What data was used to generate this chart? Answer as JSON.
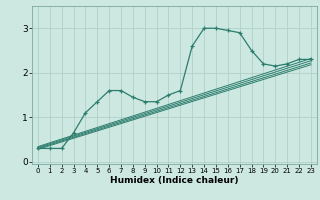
{
  "xlabel": "Humidex (Indice chaleur)",
  "ylabel": "",
  "bg_color": "#cce8e0",
  "line_color": "#2d7d6e",
  "grid_color": "#b0cfc8",
  "xlim": [
    -0.5,
    23.5
  ],
  "ylim": [
    -0.05,
    3.5
  ],
  "yticks": [
    0,
    1,
    2,
    3
  ],
  "xticks": [
    0,
    1,
    2,
    3,
    4,
    5,
    6,
    7,
    8,
    9,
    10,
    11,
    12,
    13,
    14,
    15,
    16,
    17,
    18,
    19,
    20,
    21,
    22,
    23
  ],
  "series": [
    [
      0,
      0.3
    ],
    [
      1,
      0.3
    ],
    [
      2,
      0.3
    ],
    [
      3,
      0.65
    ],
    [
      4,
      1.1
    ],
    [
      5,
      1.35
    ],
    [
      6,
      1.6
    ],
    [
      7,
      1.6
    ],
    [
      8,
      1.45
    ],
    [
      9,
      1.35
    ],
    [
      10,
      1.35
    ],
    [
      11,
      1.5
    ],
    [
      12,
      1.6
    ],
    [
      13,
      2.6
    ],
    [
      14,
      3.0
    ],
    [
      15,
      3.0
    ],
    [
      16,
      2.95
    ],
    [
      17,
      2.9
    ],
    [
      18,
      2.5
    ],
    [
      19,
      2.2
    ],
    [
      20,
      2.15
    ],
    [
      21,
      2.2
    ],
    [
      22,
      2.3
    ],
    [
      23,
      2.3
    ]
  ],
  "linear_lines": [
    [
      [
        0,
        23
      ],
      [
        0.28,
        2.18
      ]
    ],
    [
      [
        0,
        23
      ],
      [
        0.3,
        2.22
      ]
    ],
    [
      [
        0,
        23
      ],
      [
        0.32,
        2.27
      ]
    ],
    [
      [
        0,
        23
      ],
      [
        0.34,
        2.32
      ]
    ]
  ]
}
